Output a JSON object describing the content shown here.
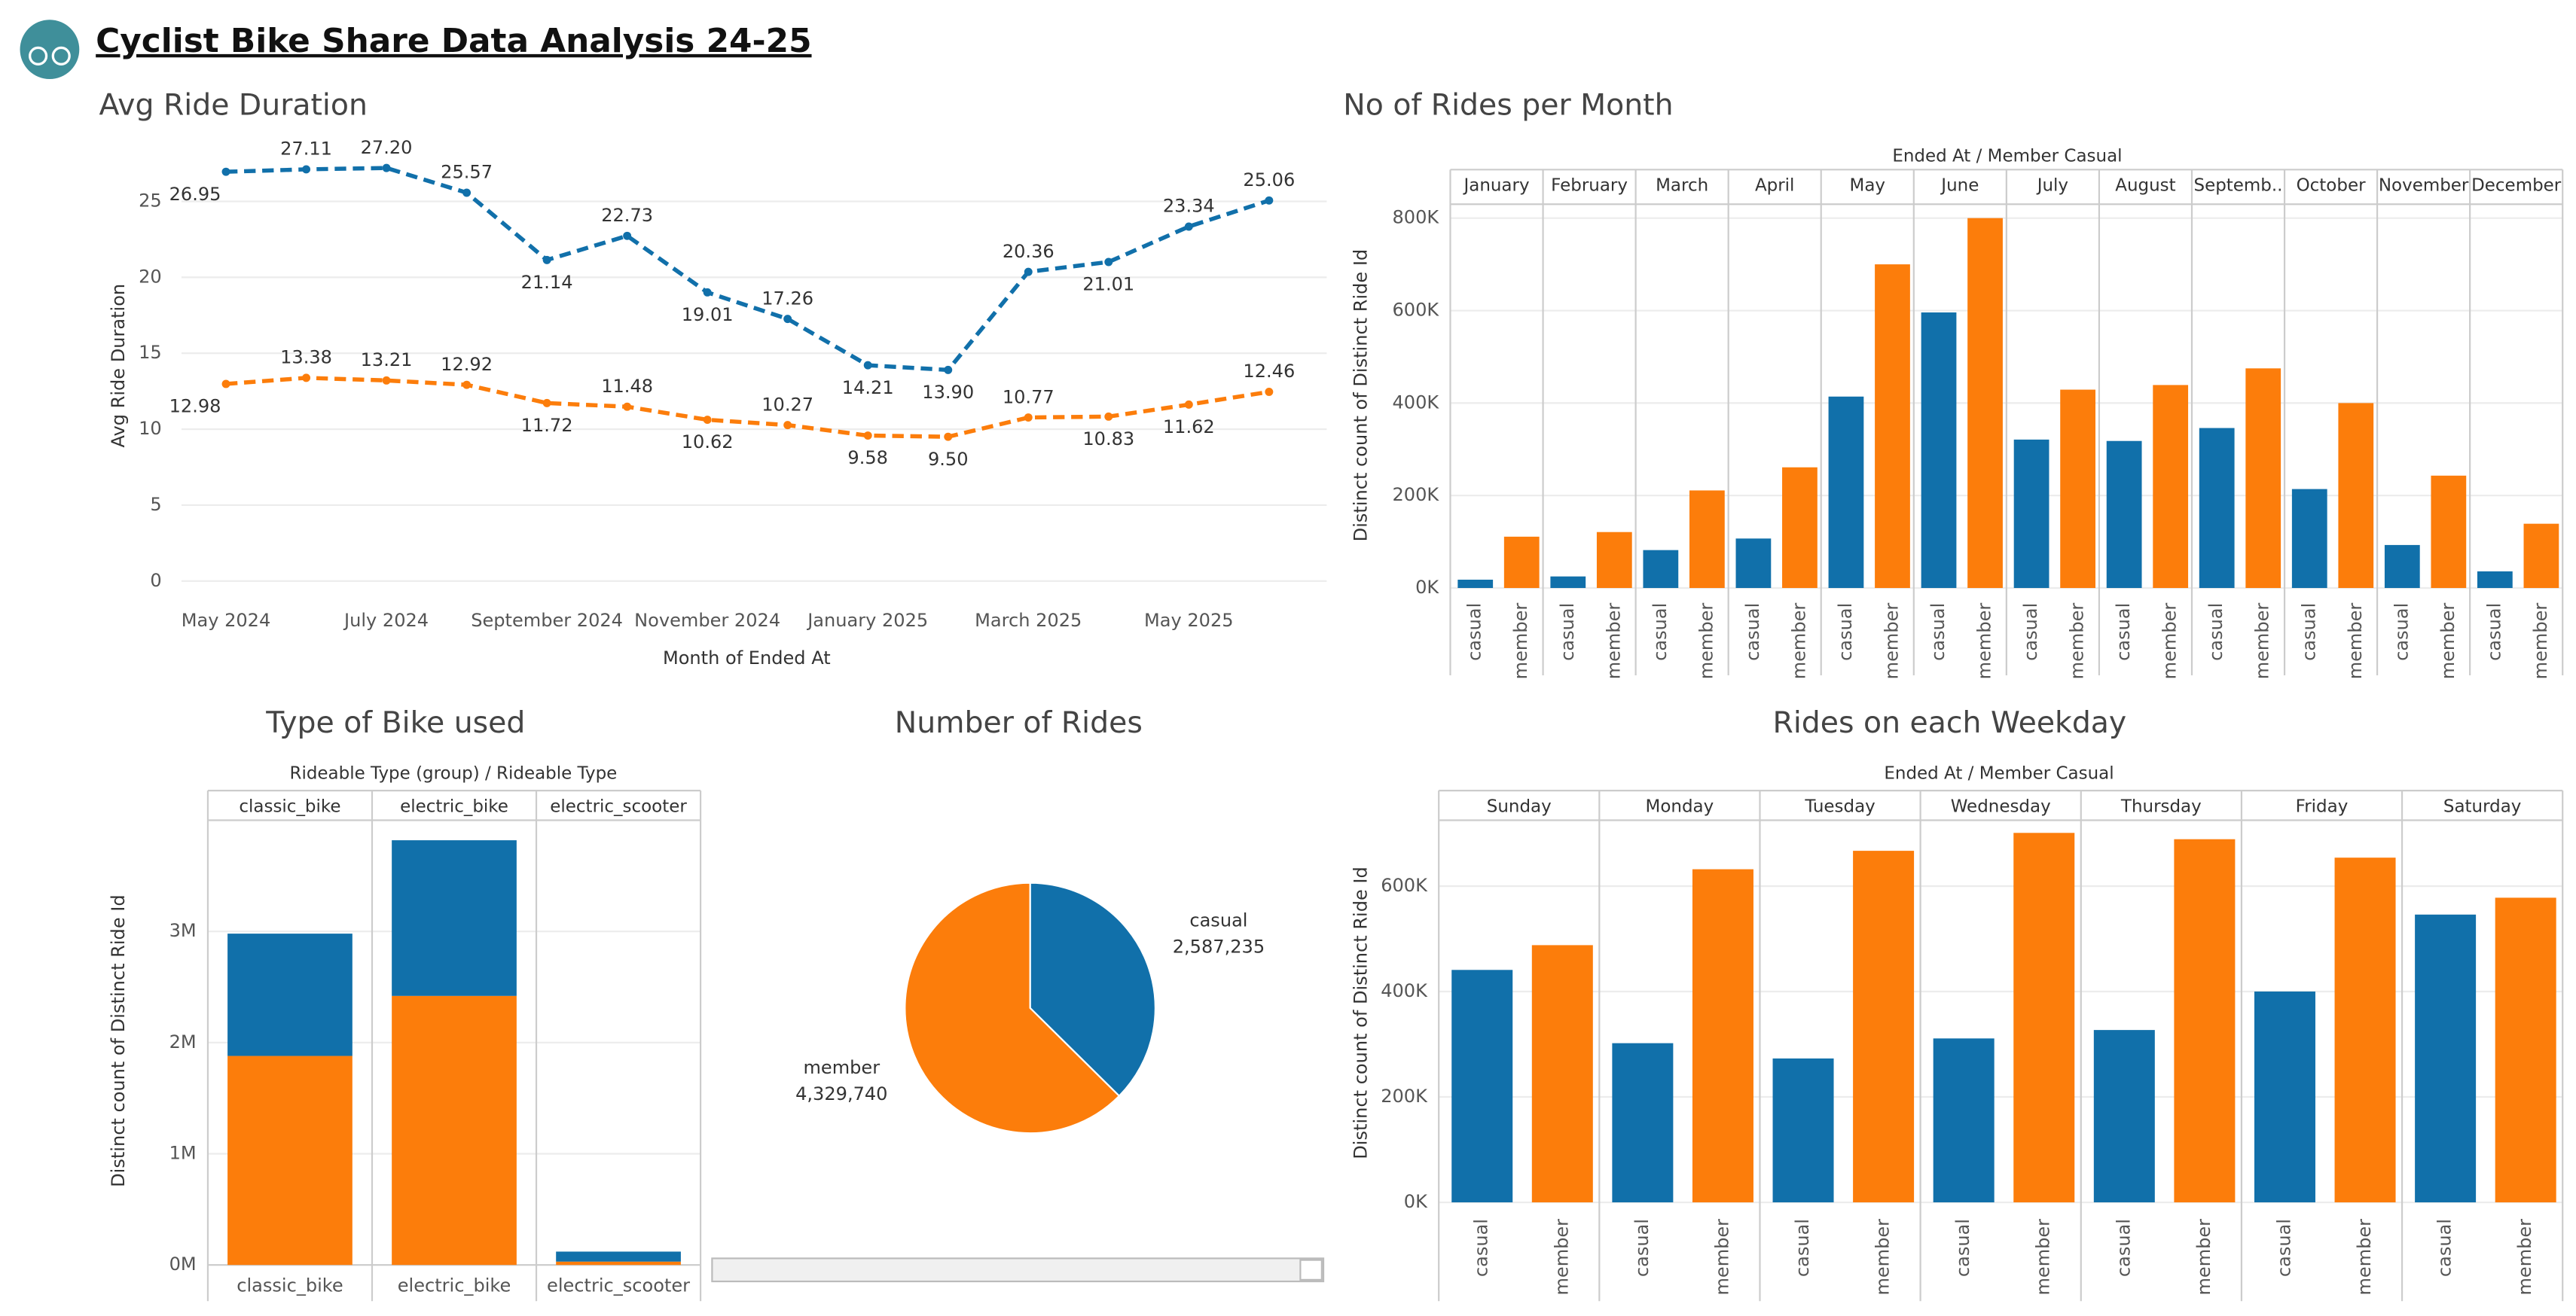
{
  "title": "Cyclist Bike Share Data Analysis 24-25",
  "chart_data": [
    {
      "type": "line",
      "title": "Avg Ride Duration",
      "x_label": "Month of Ended At",
      "y_label": "Avg Ride Duration",
      "categories": [
        "May 2024",
        null,
        "July 2024",
        null,
        "September 2024",
        null,
        "November 2024",
        null,
        "January 2025",
        null,
        "March 2025",
        null,
        "May 2025",
        null
      ],
      "series": [
        {
          "color": "#1170aa",
          "values": [
            26.95,
            27.11,
            27.2,
            25.57,
            21.14,
            22.73,
            19.01,
            17.26,
            14.21,
            13.9,
            20.36,
            21.01,
            23.34,
            25.06
          ],
          "value_labels": [
            "26.95",
            "27.11",
            "27.20",
            "25.57",
            "21.14",
            "22.73",
            "19.01",
            "17.26",
            "14.21",
            "13.90",
            "20.36",
            "21.01",
            "23.34",
            "25.06"
          ]
        },
        {
          "color": "#fc7d0b",
          "values": [
            12.98,
            13.38,
            13.21,
            12.92,
            11.72,
            11.48,
            10.62,
            10.27,
            9.58,
            9.5,
            10.77,
            10.83,
            11.62,
            12.46
          ],
          "value_labels": [
            "12.98",
            "13.38",
            "13.21",
            "12.92",
            "11.72",
            "11.48",
            "10.62",
            "10.27",
            "9.58",
            "9.50",
            "10.77",
            "10.83",
            "11.62",
            "12.46"
          ]
        }
      ],
      "ylim": [
        -1,
        28.5
      ],
      "yticks": [
        0,
        5,
        10,
        15,
        20,
        25
      ],
      "grid": true,
      "line_style": "dashed"
    },
    {
      "type": "bar",
      "title": "No of Rides per Month",
      "header": "Ended At / Member Casual",
      "y_label": "Distinct count of Distinct Ride Id",
      "categories": [
        "January",
        "February",
        "March",
        "April",
        "May",
        "June",
        "July",
        "August",
        "Septemb..",
        "October",
        "November",
        "December"
      ],
      "series": [
        {
          "name": "casual",
          "color": "#1170aa",
          "values": [
            18000,
            25000,
            82000,
            107000,
            414000,
            596000,
            321000,
            318000,
            346000,
            214000,
            93000,
            36000
          ]
        },
        {
          "name": "member",
          "color": "#fc7d0b",
          "values": [
            111000,
            121000,
            211000,
            261000,
            700000,
            800000,
            429000,
            439000,
            475000,
            400000,
            243000,
            139000
          ]
        }
      ],
      "ylim": [
        0,
        830000
      ],
      "yticks": [
        {
          "value": 0,
          "label": "0K"
        },
        {
          "value": 200000,
          "label": "200K"
        },
        {
          "value": 400000,
          "label": "400K"
        },
        {
          "value": 600000,
          "label": "600K"
        },
        {
          "value": 800000,
          "label": "800K"
        }
      ],
      "grid": true
    },
    {
      "type": "stacked_bar",
      "title": "Type of Bike used",
      "header": "Rideable Type (group) / Rideable Type",
      "y_label": "Distinct count of Distinct Ride Id",
      "categories": [
        "classic_bike",
        "electric_bike",
        "electric_scooter"
      ],
      "series": [
        {
          "color": "#fc7d0b",
          "values": [
            1880000,
            2420000,
            30000
          ]
        },
        {
          "color": "#1170aa",
          "values": [
            1100000,
            1400000,
            90000
          ]
        }
      ],
      "ylim": [
        0,
        4000000
      ],
      "yticks": [
        {
          "value": 0,
          "label": "0M"
        },
        {
          "value": 1000000,
          "label": "1M"
        },
        {
          "value": 2000000,
          "label": "2M"
        },
        {
          "value": 3000000,
          "label": "3M"
        }
      ],
      "grid": true
    },
    {
      "type": "pie",
      "title": "Number of Rides",
      "categories": [
        "casual",
        "member"
      ],
      "values": [
        2587235,
        4329740
      ],
      "value_labels": [
        "2,587,235",
        "4,329,740"
      ],
      "colors": [
        "#1170aa",
        "#fc7d0b"
      ]
    },
    {
      "type": "bar",
      "title": "Rides on each Weekday",
      "header": "Ended At / Member Casual",
      "y_label": "Distinct count of Distinct Ride Id",
      "categories": [
        "Sunday",
        "Monday",
        "Tuesday",
        "Wednesday",
        "Thursday",
        "Friday",
        "Saturday"
      ],
      "series": [
        {
          "name": "casual",
          "color": "#1170aa",
          "values": [
            441000,
            302000,
            273000,
            311000,
            327000,
            400000,
            546000
          ]
        },
        {
          "name": "member",
          "color": "#fc7d0b",
          "values": [
            488000,
            632000,
            667000,
            701000,
            689000,
            654000,
            578000
          ]
        }
      ],
      "ylim": [
        0,
        725000
      ],
      "yticks": [
        {
          "value": 0,
          "label": "0K"
        },
        {
          "value": 200000,
          "label": "200K"
        },
        {
          "value": 400000,
          "label": "400K"
        },
        {
          "value": 600000,
          "label": "600K"
        }
      ],
      "grid": true
    }
  ]
}
